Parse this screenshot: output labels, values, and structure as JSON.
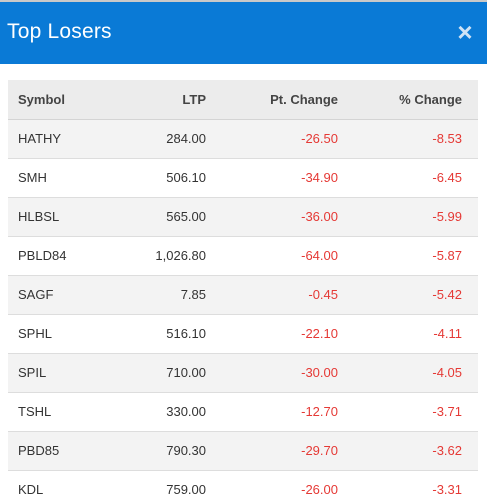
{
  "dialog": {
    "title": "Top Losers",
    "close_icon": "close-icon"
  },
  "colors": {
    "header_bg": "#0a7ad6",
    "negative": "#e53935"
  },
  "table": {
    "columns": [
      "Symbol",
      "LTP",
      "Pt. Change",
      "% Change"
    ],
    "rows": [
      {
        "symbol": "HATHY",
        "ltp": "284.00",
        "pt_change": "-26.50",
        "pct_change": "-8.53"
      },
      {
        "symbol": "SMH",
        "ltp": "506.10",
        "pt_change": "-34.90",
        "pct_change": "-6.45"
      },
      {
        "symbol": "HLBSL",
        "ltp": "565.00",
        "pt_change": "-36.00",
        "pct_change": "-5.99"
      },
      {
        "symbol": "PBLD84",
        "ltp": "1,026.80",
        "pt_change": "-64.00",
        "pct_change": "-5.87"
      },
      {
        "symbol": "SAGF",
        "ltp": "7.85",
        "pt_change": "-0.45",
        "pct_change": "-5.42"
      },
      {
        "symbol": "SPHL",
        "ltp": "516.10",
        "pt_change": "-22.10",
        "pct_change": "-4.11"
      },
      {
        "symbol": "SPIL",
        "ltp": "710.00",
        "pt_change": "-30.00",
        "pct_change": "-4.05"
      },
      {
        "symbol": "TSHL",
        "ltp": "330.00",
        "pt_change": "-12.70",
        "pct_change": "-3.71"
      },
      {
        "symbol": "PBD85",
        "ltp": "790.30",
        "pt_change": "-29.70",
        "pct_change": "-3.62"
      },
      {
        "symbol": "KDL",
        "ltp": "759.00",
        "pt_change": "-26.00",
        "pct_change": "-3.31"
      }
    ]
  }
}
